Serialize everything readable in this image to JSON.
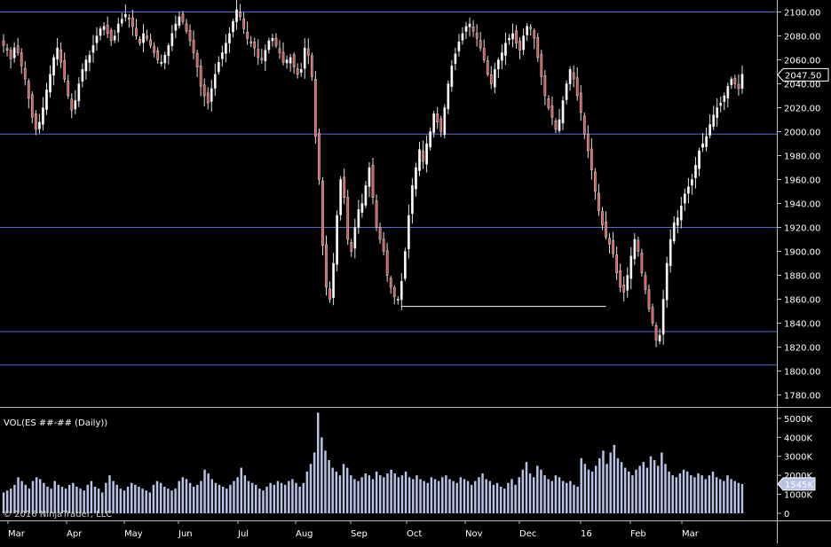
{
  "chart_data": [
    {
      "type": "candlestick",
      "instrument": "ES ##-##",
      "title": "",
      "ylim": [
        1770,
        2110
      ],
      "yticks": [
        2100,
        2080,
        2060,
        2040,
        2020,
        2000,
        1980,
        1960,
        1940,
        1920,
        1900,
        1880,
        1860,
        1840,
        1820,
        1800,
        1780
      ],
      "ytick_labels": [
        "2100.00",
        "2080.00",
        "2060.00",
        "2040.00",
        "2020.00",
        "2000.00",
        "1980.00",
        "1960.00",
        "1940.00",
        "1920.00",
        "1900.00",
        "1880.00",
        "1860.00",
        "1840.00",
        "1820.00",
        "1800.00",
        "1780.00"
      ],
      "xtick_labels": [
        "Mar",
        "Apr",
        "May",
        "Jun",
        "Jul",
        "Aug",
        "Sep",
        "Oct",
        "Nov",
        "Dec",
        "16",
        "Feb",
        "Mar"
      ],
      "horizontal_lines": [
        2100,
        1998,
        1920,
        1833,
        1805
      ],
      "support_line": {
        "from_date": "Sep 28",
        "to_date": "Jan 12",
        "value": 1854
      },
      "last_price": 2047.5,
      "last_price_label": "2047.50",
      "closes": [
        2072,
        2068,
        2061,
        2070,
        2066,
        2055,
        2044,
        2028,
        2012,
        2002,
        2008,
        2020,
        2035,
        2048,
        2062,
        2070,
        2058,
        2044,
        2030,
        2018,
        2026,
        2040,
        2052,
        2060,
        2064,
        2072,
        2080,
        2086,
        2088,
        2082,
        2076,
        2080,
        2090,
        2094,
        2098,
        2094,
        2088,
        2080,
        2074,
        2082,
        2078,
        2072,
        2066,
        2060,
        2058,
        2064,
        2072,
        2082,
        2090,
        2096,
        2092,
        2084,
        2076,
        2066,
        2054,
        2038,
        2030,
        2024,
        2036,
        2048,
        2058,
        2066,
        2074,
        2082,
        2092,
        2102,
        2096,
        2086,
        2078,
        2074,
        2070,
        2062,
        2060,
        2068,
        2076,
        2078,
        2072,
        2066,
        2058,
        2060,
        2062,
        2054,
        2048,
        2052,
        2070,
        2064,
        2046,
        1996,
        1960,
        1905,
        1870,
        1860,
        1890,
        1930,
        1960,
        1945,
        1910,
        1900,
        1920,
        1935,
        1940,
        1955,
        1970,
        1945,
        1920,
        1910,
        1900,
        1880,
        1870,
        1862,
        1860,
        1875,
        1900,
        1930,
        1955,
        1970,
        1985,
        1975,
        1990,
        2000,
        2015,
        2008,
        2000,
        2020,
        2040,
        2055,
        2065,
        2075,
        2082,
        2088,
        2090,
        2084,
        2078,
        2070,
        2060,
        2048,
        2040,
        2052,
        2060,
        2066,
        2074,
        2078,
        2082,
        2074,
        2068,
        2080,
        2088,
        2086,
        2078,
        2062,
        2046,
        2030,
        2020,
        2012,
        2002,
        2010,
        2026,
        2040,
        2052,
        2044,
        2030,
        2016,
        1998,
        1984,
        1968,
        1950,
        1934,
        1922,
        1912,
        1906,
        1898,
        1882,
        1870,
        1866,
        1880,
        1896,
        1910,
        1900,
        1882,
        1868,
        1852,
        1840,
        1826,
        1830,
        1860,
        1890,
        1910,
        1924,
        1928,
        1938,
        1948,
        1954,
        1960,
        1972,
        1984,
        1990,
        1996,
        2006,
        2014,
        2020,
        2024,
        2030,
        2038,
        2044,
        2040,
        2036,
        2048
      ],
      "volume": {
        "label": "VOL(ES ##-## (Daily))",
        "ylim": [
          0,
          5600000
        ],
        "yticks": [
          0,
          1000000,
          2000000,
          3000000,
          4000000,
          5000000
        ],
        "ytick_labels": [
          "0",
          "1000K",
          "2000K",
          "3000K",
          "4000K",
          "5000K"
        ],
        "last_label": "1545K",
        "values": [
          1100000,
          1200000,
          1300000,
          1500000,
          1900000,
          1700000,
          1500000,
          1300000,
          1700000,
          1900000,
          1800000,
          1600000,
          1400000,
          1300000,
          1700000,
          1500000,
          1400000,
          1300000,
          1500000,
          1600000,
          1400000,
          1300000,
          1200000,
          1500000,
          1700000,
          1400000,
          1300000,
          1100000,
          1600000,
          2000000,
          1700000,
          1500000,
          1300000,
          1200000,
          1400000,
          1600000,
          1500000,
          1400000,
          1300000,
          1200000,
          1100000,
          1500000,
          1700000,
          1600000,
          1400000,
          1300000,
          1200000,
          1300000,
          1700000,
          1900000,
          1800000,
          1600000,
          1400000,
          1500000,
          1700000,
          2300000,
          2100000,
          1800000,
          1600000,
          1500000,
          1400000,
          1300000,
          1500000,
          1700000,
          1900000,
          2400000,
          2000000,
          1700000,
          1600000,
          1500000,
          1300000,
          1200000,
          1400000,
          1600000,
          1500000,
          1700000,
          1600000,
          1500000,
          1700000,
          1800000,
          1600000,
          1400000,
          1600000,
          2200000,
          2600000,
          3200000,
          5300000,
          4000000,
          3300000,
          2800000,
          2400000,
          2200000,
          2000000,
          2600000,
          2400000,
          2000000,
          1800000,
          1700000,
          1900000,
          2100000,
          2000000,
          1800000,
          2200000,
          2000000,
          1900000,
          2100000,
          2300000,
          2100000,
          1900000,
          2000000,
          2200000,
          1900000,
          1800000,
          2000000,
          1800000,
          1700000,
          1600000,
          1900000,
          1800000,
          1700000,
          1900000,
          2000000,
          1800000,
          1700000,
          1600000,
          1900000,
          1800000,
          1700000,
          1500000,
          1700000,
          1900000,
          2100000,
          1800000,
          1700000,
          1500000,
          1600000,
          1400000,
          1300000,
          1600000,
          1800000,
          1500000,
          1900000,
          2300000,
          2700000,
          2100000,
          1900000,
          2500000,
          2300000,
          2000000,
          1800000,
          1700000,
          2000000,
          1900000,
          1700000,
          1600000,
          1700000,
          1500000,
          1400000,
          2900000,
          2600000,
          2300000,
          2200000,
          2500000,
          2900000,
          3300000,
          2600000,
          3200000,
          3600000,
          2900000,
          2700000,
          2400000,
          2200000,
          2000000,
          2300000,
          2500000,
          2700000,
          2400000,
          3000000,
          2800000,
          2500000,
          3200000,
          2600000,
          2200000,
          2000000,
          1900000,
          2100000,
          2300000,
          2200000,
          2000000,
          1900000,
          2100000,
          2000000,
          1800000,
          2000000,
          2200000,
          1900000,
          1800000,
          1700000,
          2000000,
          1800000,
          1700000,
          1600000,
          1545000
        ]
      }
    }
  ],
  "watermark": "© 2016 NinjaTrader, LLC"
}
